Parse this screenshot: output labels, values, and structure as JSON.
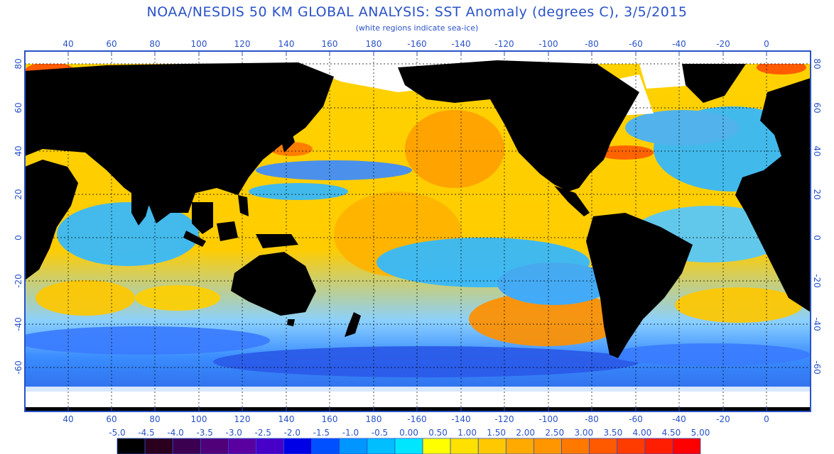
{
  "title": "NOAA/NESDIS 50 KM GLOBAL ANALYSIS: SST Anomaly (degrees C), 3/5/2015",
  "subtitle": "(white regions indicate sea-ice)",
  "map": {
    "lon_labels": [
      "40",
      "60",
      "80",
      "100",
      "120",
      "140",
      "160",
      "180",
      "-160",
      "-140",
      "-120",
      "-100",
      "-80",
      "-60",
      "-40",
      "-20",
      "0"
    ],
    "lat_labels": [
      "80",
      "60",
      "40",
      "20",
      "0",
      "-20",
      "-40",
      "-60"
    ],
    "colors": {
      "land": "#000000",
      "ice": "#ffffff",
      "frame": "#2a52c8",
      "grid": "#000000"
    }
  },
  "colorbar": {
    "labels": [
      "-5.0",
      "-4.5",
      "-4.0",
      "-3.5",
      "-3.0",
      "-2.5",
      "-2.0",
      "-1.5",
      "-1.0",
      "-0.5",
      "0.00",
      "0.50",
      "1.00",
      "1.50",
      "2.00",
      "2.50",
      "3.00",
      "3.50",
      "4.00",
      "4.50",
      "5.00"
    ],
    "colors": [
      "#000000",
      "#2a001e",
      "#3c0050",
      "#500078",
      "#5a00a0",
      "#4600c8",
      "#0000e6",
      "#0050ff",
      "#0096ff",
      "#00beff",
      "#00e6ff",
      "#ffff00",
      "#ffe100",
      "#ffc800",
      "#ffaa00",
      "#ff9600",
      "#ff7800",
      "#ff5a00",
      "#ff3c00",
      "#ff1e00",
      "#ff0000"
    ]
  }
}
